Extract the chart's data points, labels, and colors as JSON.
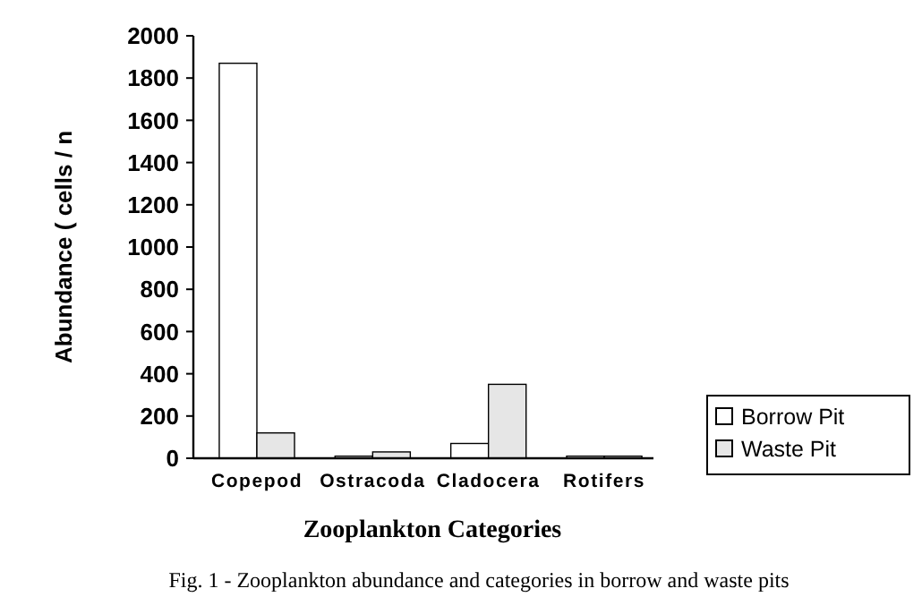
{
  "chart_data": {
    "type": "bar",
    "xlabel": "Zooplankton Categories",
    "ylabel": "Abundance ( cells / n",
    "categories": [
      "Copepod",
      "Ostracoda",
      "Cladocera",
      "Rotifers"
    ],
    "series": [
      {
        "name": "Borrow Pit",
        "color": "#ffffff",
        "values": [
          1870,
          10,
          70,
          10
        ]
      },
      {
        "name": "Waste Pit",
        "color": "#e6e6e6",
        "values": [
          120,
          30,
          350,
          10
        ]
      }
    ],
    "ylim": [
      0,
      2000
    ],
    "yticks": [
      0,
      200,
      400,
      600,
      800,
      1000,
      1200,
      1400,
      1600,
      1800,
      2000
    ],
    "legend": "right",
    "grid": false,
    "annotations": [
      "Fig. 1 - Zooplankton abundance and categories in borrow  and waste pits"
    ]
  }
}
